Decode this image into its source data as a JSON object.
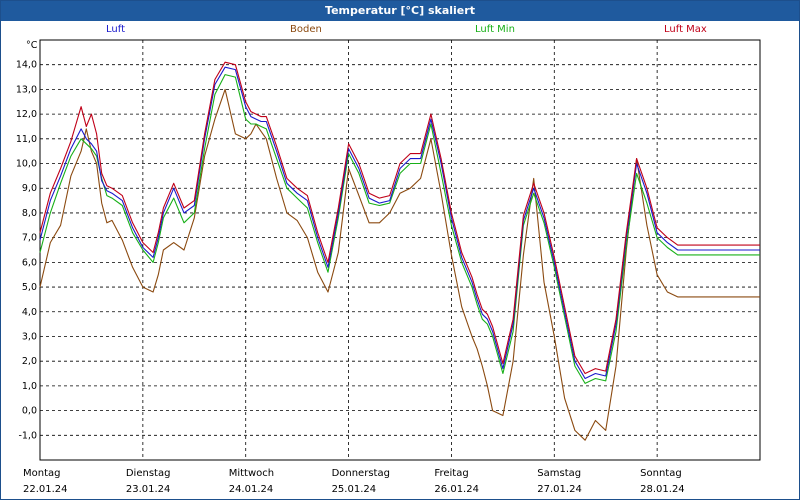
{
  "window": {
    "title": "Temperatur [°C] skaliert"
  },
  "colors": {
    "luft": "#1a1acc",
    "boden": "#8b4a10",
    "luft_min": "#18b018",
    "luft_max": "#c00018",
    "grid": "#000000",
    "background": "#ffffff"
  },
  "chart_data": {
    "type": "line",
    "title": "Temperatur [°C] skaliert",
    "ylabel": "°C",
    "xlabel": "",
    "ylim": [
      -2.0,
      15.0
    ],
    "xlim": [
      0,
      7
    ],
    "grid": true,
    "legend_position": "top",
    "y_ticks": [
      "14,0",
      "13,0",
      "12,0",
      "11,0",
      "10,0",
      "9,0",
      "8,0",
      "7,0",
      "6,0",
      "5,0",
      "4,0",
      "3,0",
      "2,0",
      "1,0",
      "0,0",
      "-1,0"
    ],
    "y_tick_values": [
      14,
      13,
      12,
      11,
      10,
      9,
      8,
      7,
      6,
      5,
      4,
      3,
      2,
      1,
      0,
      -1
    ],
    "x_ticks": [
      {
        "day": "Montag",
        "date": "22.01.24"
      },
      {
        "day": "Dienstag",
        "date": "23.01.24"
      },
      {
        "day": "Mittwoch",
        "date": "24.01.24"
      },
      {
        "day": "Donnerstag",
        "date": "25.01.24"
      },
      {
        "day": "Freitag",
        "date": "26.01.24"
      },
      {
        "day": "Samstag",
        "date": "27.01.24"
      },
      {
        "day": "Sonntag",
        "date": "28.01.24"
      }
    ],
    "series": [
      {
        "name": "Luft",
        "x": [
          0,
          0.1,
          0.2,
          0.3,
          0.4,
          0.45,
          0.5,
          0.55,
          0.6,
          0.65,
          0.7,
          0.8,
          0.9,
          1.0,
          1.1,
          1.15,
          1.2,
          1.3,
          1.4,
          1.5,
          1.6,
          1.7,
          1.8,
          1.9,
          2.0,
          2.05,
          2.1,
          2.15,
          2.2,
          2.3,
          2.4,
          2.5,
          2.6,
          2.7,
          2.8,
          2.9,
          3.0,
          3.1,
          3.2,
          3.3,
          3.4,
          3.5,
          3.6,
          3.7,
          3.8,
          3.9,
          4.0,
          4.1,
          4.2,
          4.25,
          4.3,
          4.35,
          4.4,
          4.5,
          4.6,
          4.7,
          4.8,
          4.9,
          5.0,
          5.1,
          5.2,
          5.3,
          5.4,
          5.5,
          5.6,
          5.7,
          5.8,
          5.9,
          6.0,
          6.1,
          6.2,
          6.3,
          6.4,
          6.5,
          6.6,
          6.7,
          6.8,
          6.9,
          7.0
        ],
        "values": [
          6.9,
          8.5,
          9.5,
          10.6,
          11.4,
          11.0,
          10.8,
          10.5,
          9.3,
          8.9,
          8.8,
          8.5,
          7.4,
          6.6,
          6.2,
          7.0,
          8.0,
          9.0,
          8.0,
          8.3,
          11.0,
          13.2,
          13.9,
          13.8,
          12.3,
          11.9,
          11.8,
          11.7,
          11.7,
          10.5,
          9.2,
          8.8,
          8.5,
          7.0,
          5.8,
          8.0,
          10.6,
          9.8,
          8.6,
          8.4,
          8.5,
          9.8,
          10.2,
          10.2,
          11.8,
          10.0,
          7.8,
          6.2,
          5.2,
          4.5,
          3.9,
          3.7,
          3.2,
          1.7,
          3.5,
          7.7,
          9.0,
          7.8,
          6.0,
          4.0,
          2.0,
          1.3,
          1.5,
          1.4,
          3.5,
          7.0,
          10.0,
          8.8,
          7.2,
          6.8,
          6.5,
          6.5,
          6.5,
          6.5,
          6.5,
          6.5,
          6.5,
          6.5,
          6.5
        ]
      },
      {
        "name": "Boden",
        "x": [
          0,
          0.1,
          0.2,
          0.3,
          0.4,
          0.45,
          0.5,
          0.55,
          0.6,
          0.65,
          0.7,
          0.8,
          0.9,
          1.0,
          1.1,
          1.15,
          1.2,
          1.3,
          1.4,
          1.5,
          1.6,
          1.7,
          1.8,
          1.9,
          2.0,
          2.05,
          2.1,
          2.15,
          2.2,
          2.3,
          2.4,
          2.5,
          2.6,
          2.7,
          2.8,
          2.9,
          3.0,
          3.1,
          3.2,
          3.3,
          3.4,
          3.5,
          3.6,
          3.7,
          3.8,
          3.9,
          4.0,
          4.1,
          4.2,
          4.25,
          4.3,
          4.35,
          4.4,
          4.5,
          4.6,
          4.7,
          4.8,
          4.9,
          5.0,
          5.1,
          5.2,
          5.3,
          5.4,
          5.5,
          5.6,
          5.7,
          5.8,
          5.9,
          6.0,
          6.1,
          6.2,
          6.3,
          6.4,
          6.5,
          6.6,
          6.7,
          6.8,
          6.9,
          7.0
        ],
        "values": [
          5.0,
          6.8,
          7.5,
          9.5,
          10.5,
          11.4,
          10.5,
          10.0,
          8.4,
          7.6,
          7.7,
          6.9,
          5.8,
          5.0,
          4.8,
          5.5,
          6.5,
          6.8,
          6.5,
          7.8,
          10.3,
          11.8,
          13.0,
          11.2,
          11.0,
          11.2,
          11.6,
          11.3,
          11.0,
          9.4,
          8.0,
          7.7,
          7.0,
          5.6,
          4.8,
          6.4,
          9.8,
          8.7,
          7.6,
          7.6,
          8.0,
          8.8,
          9.0,
          9.4,
          11.0,
          8.8,
          6.3,
          4.2,
          3.0,
          2.5,
          1.8,
          1.0,
          0.0,
          -0.2,
          2.0,
          6.3,
          9.4,
          5.2,
          3.0,
          0.5,
          -0.8,
          -1.2,
          -0.4,
          -0.8,
          1.8,
          6.5,
          10.2,
          7.5,
          5.5,
          4.8,
          4.6,
          4.6,
          4.6,
          4.6,
          4.6,
          4.6,
          4.6,
          4.6,
          4.6
        ]
      },
      {
        "name": "Luft Min",
        "x": [
          0,
          0.1,
          0.2,
          0.3,
          0.4,
          0.45,
          0.5,
          0.55,
          0.6,
          0.65,
          0.7,
          0.8,
          0.9,
          1.0,
          1.1,
          1.15,
          1.2,
          1.3,
          1.4,
          1.5,
          1.6,
          1.7,
          1.8,
          1.9,
          2.0,
          2.05,
          2.1,
          2.15,
          2.2,
          2.3,
          2.4,
          2.5,
          2.6,
          2.7,
          2.8,
          2.9,
          3.0,
          3.1,
          3.2,
          3.3,
          3.4,
          3.5,
          3.6,
          3.7,
          3.8,
          3.9,
          4.0,
          4.1,
          4.2,
          4.25,
          4.3,
          4.35,
          4.4,
          4.5,
          4.6,
          4.7,
          4.8,
          4.9,
          5.0,
          5.1,
          5.2,
          5.3,
          5.4,
          5.5,
          5.6,
          5.7,
          5.8,
          5.9,
          6.0,
          6.1,
          6.2,
          6.3,
          6.4,
          6.5,
          6.6,
          6.7,
          6.8,
          6.9,
          7.0
        ],
        "values": [
          6.4,
          8.0,
          9.2,
          10.3,
          11.0,
          10.8,
          10.6,
          10.3,
          9.4,
          8.7,
          8.6,
          8.3,
          7.2,
          6.5,
          6.0,
          6.8,
          7.8,
          8.6,
          7.6,
          8.0,
          10.6,
          12.8,
          13.6,
          13.5,
          11.8,
          11.6,
          11.6,
          11.5,
          11.4,
          10.2,
          9.0,
          8.6,
          8.2,
          6.8,
          5.6,
          7.8,
          10.4,
          9.6,
          8.4,
          8.3,
          8.4,
          9.6,
          10.0,
          10.0,
          11.6,
          9.6,
          7.5,
          6.0,
          5.0,
          4.3,
          3.7,
          3.5,
          3.0,
          1.5,
          3.2,
          7.5,
          8.8,
          7.6,
          5.8,
          3.8,
          1.8,
          1.1,
          1.3,
          1.2,
          3.2,
          6.7,
          9.6,
          8.4,
          7.0,
          6.6,
          6.3,
          6.3,
          6.3,
          6.3,
          6.3,
          6.3,
          6.3,
          6.3,
          6.3
        ]
      },
      {
        "name": "Luft Max",
        "x": [
          0,
          0.1,
          0.2,
          0.3,
          0.4,
          0.45,
          0.5,
          0.55,
          0.6,
          0.65,
          0.7,
          0.8,
          0.9,
          1.0,
          1.1,
          1.15,
          1.2,
          1.3,
          1.4,
          1.5,
          1.6,
          1.7,
          1.8,
          1.9,
          2.0,
          2.05,
          2.1,
          2.15,
          2.2,
          2.3,
          2.4,
          2.5,
          2.6,
          2.7,
          2.8,
          2.9,
          3.0,
          3.1,
          3.2,
          3.3,
          3.4,
          3.5,
          3.6,
          3.7,
          3.8,
          3.9,
          4.0,
          4.1,
          4.2,
          4.25,
          4.3,
          4.35,
          4.4,
          4.5,
          4.6,
          4.7,
          4.8,
          4.9,
          5.0,
          5.1,
          5.2,
          5.3,
          5.4,
          5.5,
          5.6,
          5.7,
          5.8,
          5.9,
          6.0,
          6.1,
          6.2,
          6.3,
          6.4,
          6.5,
          6.6,
          6.7,
          6.8,
          6.9,
          7.0
        ],
        "values": [
          7.2,
          8.8,
          9.8,
          10.9,
          12.3,
          11.5,
          12.0,
          11.2,
          9.6,
          9.1,
          9.0,
          8.7,
          7.6,
          6.8,
          6.4,
          7.2,
          8.2,
          9.2,
          8.2,
          8.5,
          11.2,
          13.4,
          14.1,
          14.0,
          12.5,
          12.1,
          12.0,
          11.9,
          11.9,
          10.7,
          9.4,
          9.0,
          8.7,
          7.2,
          6.0,
          8.2,
          10.8,
          10.0,
          8.8,
          8.6,
          8.7,
          10.0,
          10.4,
          10.4,
          12.0,
          10.2,
          8.0,
          6.4,
          5.4,
          4.7,
          4.1,
          3.9,
          3.4,
          1.9,
          3.7,
          7.9,
          9.2,
          8.0,
          6.2,
          4.2,
          2.2,
          1.5,
          1.7,
          1.6,
          3.7,
          7.2,
          10.2,
          9.0,
          7.4,
          7.0,
          6.7,
          6.7,
          6.7,
          6.7,
          6.7,
          6.7,
          6.7,
          6.7,
          6.7
        ]
      }
    ]
  }
}
